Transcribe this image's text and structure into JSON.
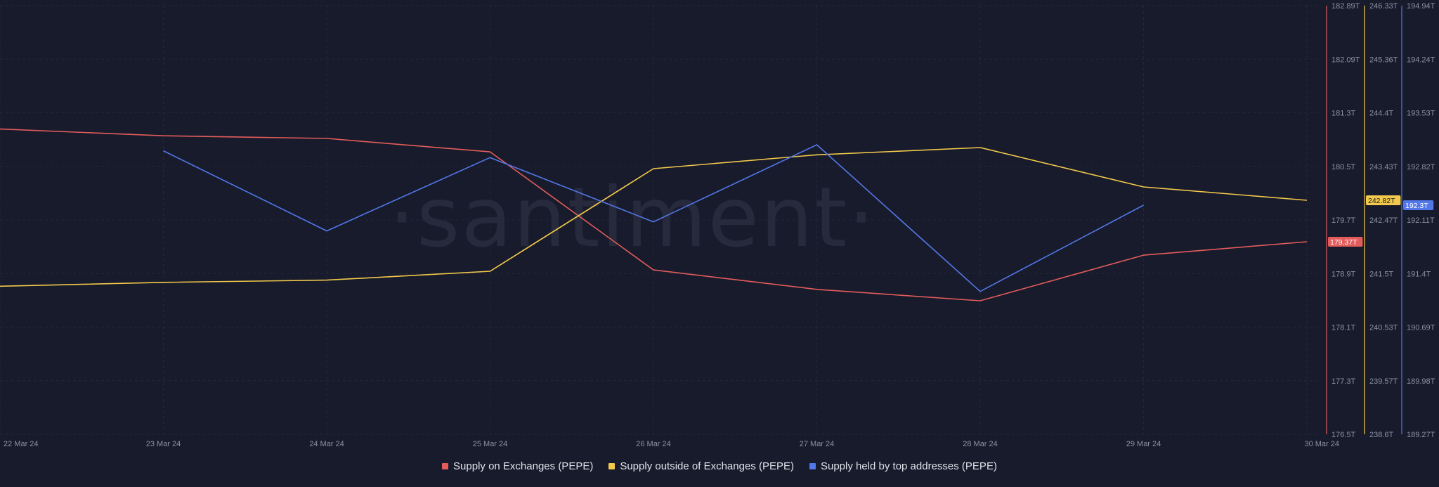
{
  "watermark": "·santiment·",
  "chart_data": {
    "type": "line",
    "x": [
      "22 Mar 24",
      "23 Mar 24",
      "24 Mar 24",
      "25 Mar 24",
      "26 Mar 24",
      "27 Mar 24",
      "28 Mar 24",
      "29 Mar 24",
      "30 Mar 24"
    ],
    "series": [
      {
        "name": "Supply on Exchanges (PEPE)",
        "color": "#e35c5c",
        "axis": 0,
        "values": [
          181.05,
          180.95,
          180.91,
          180.71,
          178.95,
          178.66,
          178.49,
          179.17,
          179.37
        ],
        "last_label": "179.37T"
      },
      {
        "name": "Supply outside of Exchanges (PEPE)",
        "color": "#f2c94c",
        "axis": 1,
        "values": [
          241.27,
          241.34,
          241.38,
          241.54,
          243.39,
          243.64,
          243.77,
          243.06,
          242.82
        ],
        "last_label": "242.82T"
      },
      {
        "name": "Supply held by top addresses (PEPE)",
        "color": "#5277e8",
        "axis": 2,
        "values": [
          null,
          193.02,
          191.96,
          192.93,
          192.08,
          193.1,
          191.16,
          192.3,
          null
        ],
        "last_label": "192.3T"
      }
    ],
    "axes": [
      {
        "color": "#e35c5c",
        "range": [
          176.5,
          182.89
        ],
        "ticks": [
          "182.89T",
          "182.09T",
          "181.3T",
          "180.5T",
          "179.7T",
          "178.9T",
          "178.1T",
          "177.3T",
          "176.5T"
        ]
      },
      {
        "color": "#f2c94c",
        "range": [
          238.6,
          246.33
        ],
        "ticks": [
          "246.33T",
          "245.36T",
          "244.4T",
          "243.43T",
          "242.47T",
          "241.5T",
          "240.53T",
          "239.57T",
          "238.6T"
        ]
      },
      {
        "color": "#5277e8",
        "range": [
          189.27,
          194.94
        ],
        "ticks": [
          "194.94T",
          "194.24T",
          "193.53T",
          "192.82T",
          "192.11T",
          "191.4T",
          "190.69T",
          "189.98T",
          "189.27T"
        ]
      }
    ],
    "grid": true,
    "legend_position": "bottom-center"
  }
}
